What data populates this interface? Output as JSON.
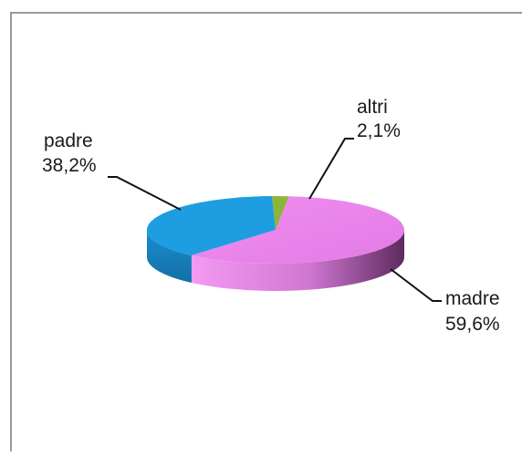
{
  "chart_data": {
    "type": "pie",
    "style": "3d",
    "categories": [
      "madre",
      "padre",
      "altri"
    ],
    "values": [
      59.6,
      38.2,
      2.1
    ],
    "value_labels": [
      "59,6%",
      "38,2%",
      "2,1%"
    ],
    "colors": {
      "madre": "#ee84ee",
      "padre": "#1e9ee0",
      "altri": "#8fb43a"
    },
    "legend": "none"
  }
}
